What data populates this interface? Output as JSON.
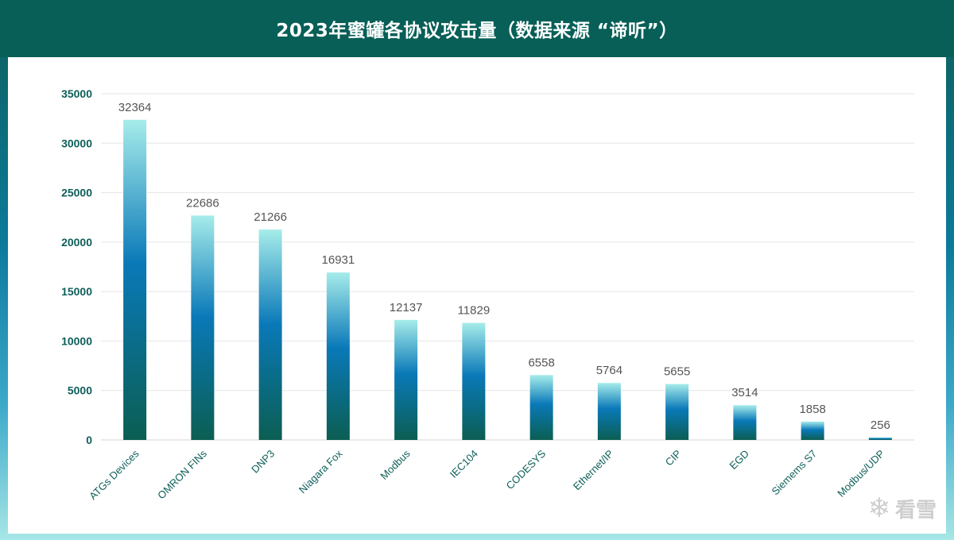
{
  "header": {
    "title": "2023年蜜罐各协议攻击量（数据来源 “谛听”）"
  },
  "watermark": {
    "text": "看雪",
    "icon": "snowflake-icon"
  },
  "colors": {
    "bar_top": "#a6ecea",
    "bar_mid": "#0a79b8",
    "bar_bottom": "#0b5e52",
    "axis_text": "#0e5f5a",
    "title_bar": "#075f57"
  },
  "chart_data": {
    "type": "bar",
    "title": "2023年蜜罐各协议攻击量（数据来源 “谛听”）",
    "xlabel": "",
    "ylabel": "",
    "ylim": [
      0,
      35000
    ],
    "yticks": [
      0,
      5000,
      10000,
      15000,
      20000,
      25000,
      30000,
      35000
    ],
    "grid": true,
    "legend": "none",
    "categories": [
      "ATGs Devices",
      "OMRON FINs",
      "DNP3",
      "Niagara Fox",
      "Modbus",
      "IEC104",
      "CODESYS",
      "Ethernet/IP",
      "CIP",
      "EGD",
      "Siemems S7",
      "Modbus/UDP"
    ],
    "values": [
      32364,
      22686,
      21266,
      16931,
      12137,
      11829,
      6558,
      5764,
      5655,
      3514,
      1858,
      256
    ]
  }
}
